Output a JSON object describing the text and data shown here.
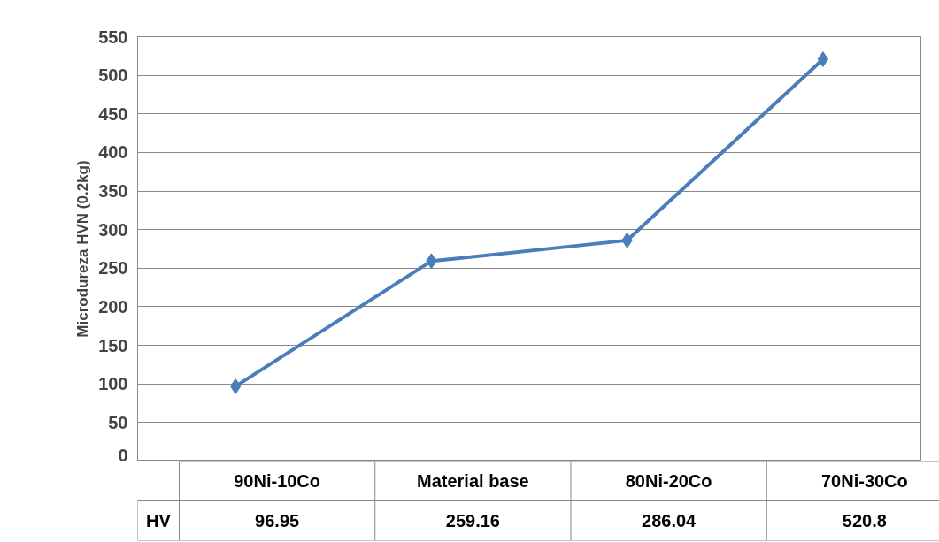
{
  "chart_data": {
    "type": "line",
    "categories": [
      "90Ni-10Co",
      "Material base",
      "80Ni-20Co",
      "70Ni-30Co"
    ],
    "series": [
      {
        "name": "HV",
        "color": "#4a7ebb",
        "values": [
          96.95,
          259.16,
          286.04,
          520.8
        ]
      }
    ],
    "ylabel": "Microdureza HVN (0.2kg)",
    "ylim": [
      0,
      550
    ],
    "yticks": [
      0,
      50,
      100,
      150,
      200,
      250,
      300,
      350,
      400,
      450,
      500,
      550
    ],
    "grid": "y",
    "marker": "diamond",
    "line_style": "solid",
    "data_labels": true
  }
}
